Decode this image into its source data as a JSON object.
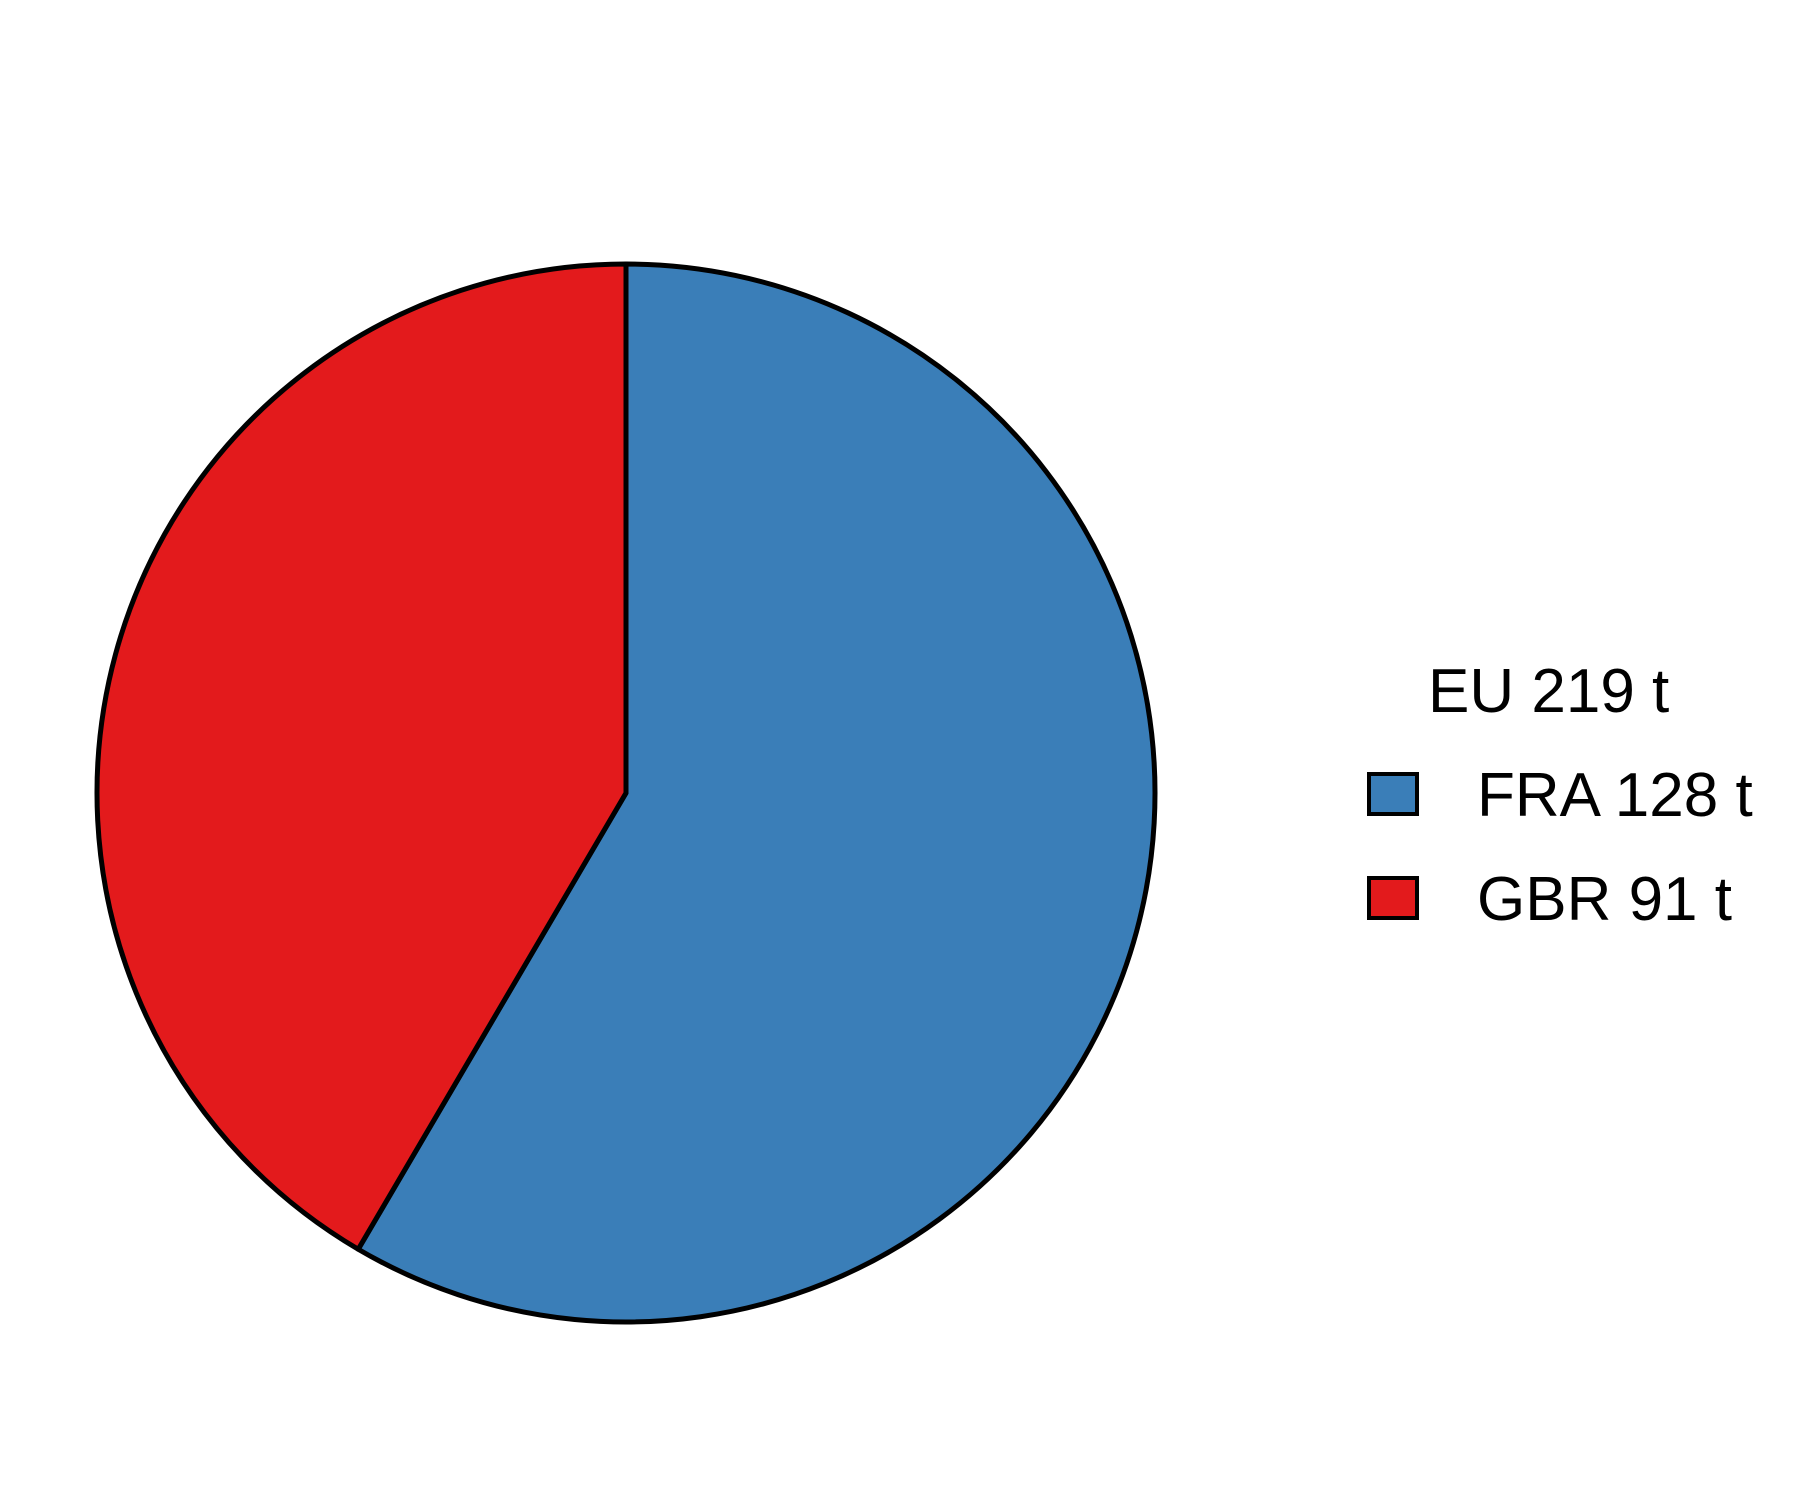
{
  "chart_data": {
    "type": "pie",
    "title": "",
    "legend_title": "EU 219 t",
    "legend_position": "right",
    "total": 219,
    "unit": "t",
    "slices": [
      {
        "label": "FRA 128 t",
        "code": "FRA",
        "value": 128,
        "color": "#3A7EB8"
      },
      {
        "label": "GBR 91 t",
        "code": "GBR",
        "value": 91,
        "color": "#E31A1C"
      }
    ]
  }
}
